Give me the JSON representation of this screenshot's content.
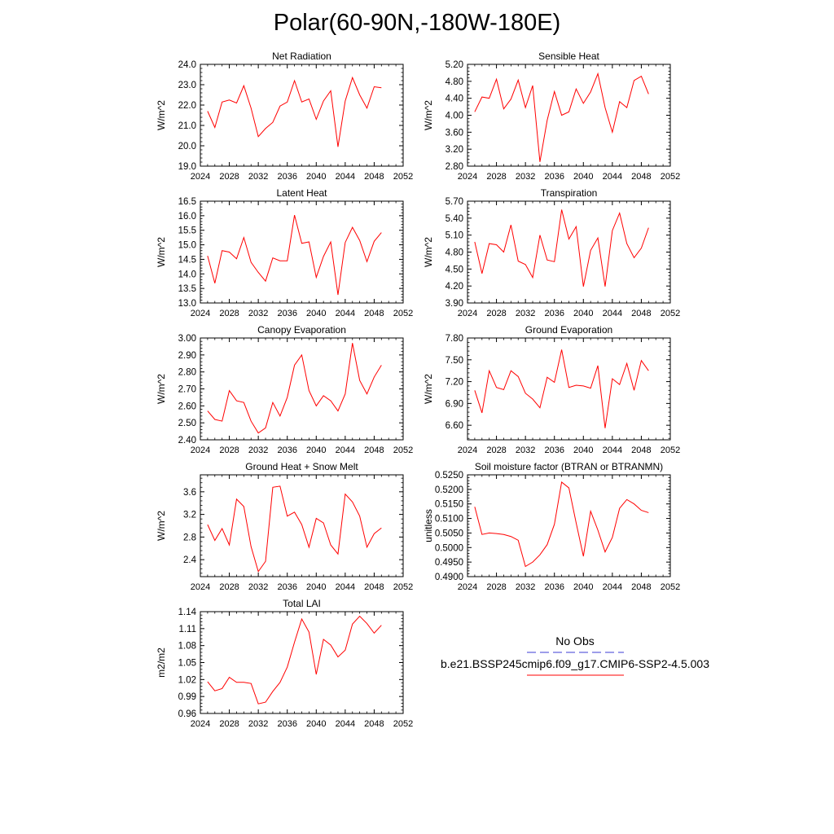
{
  "page": {
    "title": "Polar(60-90N,-180W-180E)"
  },
  "legend": {
    "obs_label": "No Obs",
    "obs_color": "#3b3bd6",
    "case_label": "b.e21.BSSP245cmip6.f09_g17.CMIP6-SSP2-4.5.003",
    "case_color": "#ff0000"
  },
  "chart_data": [
    {
      "type": "line",
      "title": "Net Radiation",
      "ylabel": "W/m^2",
      "xlim": [
        2024,
        2052
      ],
      "xticks": [
        2024,
        2028,
        2032,
        2036,
        2040,
        2044,
        2048,
        2052
      ],
      "ylim": [
        19.0,
        24.0
      ],
      "yticks": [
        "19.0",
        "20.0",
        "21.0",
        "22.0",
        "23.0",
        "24.0"
      ],
      "series": [
        {
          "name": "b.e21.BSSP245cmip6.f09_g17.CMIP6-SSP2-4.5.003",
          "color": "#ff0000",
          "x": [
            2025,
            2026,
            2027,
            2028,
            2029,
            2030,
            2031,
            2032,
            2033,
            2034,
            2035,
            2036,
            2037,
            2038,
            2039,
            2040,
            2041,
            2042,
            2043,
            2044,
            2045,
            2046,
            2047,
            2048,
            2049
          ],
          "values": [
            21.7,
            20.9,
            22.15,
            22.25,
            22.1,
            22.95,
            21.85,
            20.45,
            20.85,
            21.15,
            21.95,
            22.15,
            23.2,
            22.15,
            22.3,
            21.3,
            22.2,
            22.7,
            19.95,
            22.2,
            23.35,
            22.5,
            21.85,
            22.9,
            22.85
          ]
        }
      ]
    },
    {
      "type": "line",
      "title": "Sensible Heat",
      "ylabel": "W/m^2",
      "xlim": [
        2024,
        2052
      ],
      "xticks": [
        2024,
        2028,
        2032,
        2036,
        2040,
        2044,
        2048,
        2052
      ],
      "ylim": [
        2.8,
        5.2
      ],
      "yticks": [
        "2.80",
        "3.20",
        "3.60",
        "4.00",
        "4.40",
        "4.80",
        "5.20"
      ],
      "series": [
        {
          "name": "b.e21.BSSP245cmip6.f09_g17.CMIP6-SSP2-4.5.003",
          "color": "#ff0000",
          "x": [
            2025,
            2026,
            2027,
            2028,
            2029,
            2030,
            2031,
            2032,
            2033,
            2034,
            2035,
            2036,
            2037,
            2038,
            2039,
            2040,
            2041,
            2042,
            2043,
            2044,
            2045,
            2046,
            2047,
            2048,
            2049
          ],
          "values": [
            4.08,
            4.43,
            4.4,
            4.85,
            4.15,
            4.38,
            4.83,
            4.18,
            4.7,
            2.9,
            3.88,
            4.56,
            4.0,
            4.08,
            4.62,
            4.28,
            4.55,
            4.98,
            4.18,
            3.6,
            4.32,
            4.18,
            4.82,
            4.92,
            4.5
          ]
        }
      ]
    },
    {
      "type": "line",
      "title": "Latent Heat",
      "ylabel": "W/m^2",
      "xlim": [
        2024,
        2052
      ],
      "xticks": [
        2024,
        2028,
        2032,
        2036,
        2040,
        2044,
        2048,
        2052
      ],
      "ylim": [
        13.0,
        16.5
      ],
      "yticks": [
        "13.0",
        "13.5",
        "14.0",
        "14.5",
        "15.0",
        "15.5",
        "16.0",
        "16.5"
      ],
      "series": [
        {
          "name": "b.e21.BSSP245cmip6.f09_g17.CMIP6-SSP2-4.5.003",
          "color": "#ff0000",
          "x": [
            2025,
            2026,
            2027,
            2028,
            2029,
            2030,
            2031,
            2032,
            2033,
            2034,
            2035,
            2036,
            2037,
            2038,
            2039,
            2040,
            2041,
            2042,
            2043,
            2044,
            2045,
            2046,
            2047,
            2048,
            2049
          ],
          "values": [
            14.62,
            13.68,
            14.8,
            14.75,
            14.52,
            15.25,
            14.4,
            14.05,
            13.75,
            14.55,
            14.45,
            14.45,
            16.02,
            15.05,
            15.1,
            13.88,
            14.6,
            15.1,
            13.28,
            15.08,
            15.6,
            15.15,
            14.42,
            15.12,
            15.42
          ]
        }
      ]
    },
    {
      "type": "line",
      "title": "Transpiration",
      "ylabel": "W/m^2",
      "xlim": [
        2024,
        2052
      ],
      "xticks": [
        2024,
        2028,
        2032,
        2036,
        2040,
        2044,
        2048,
        2052
      ],
      "ylim": [
        3.9,
        5.7
      ],
      "yticks": [
        "3.90",
        "4.20",
        "4.50",
        "4.80",
        "5.10",
        "5.40",
        "5.70"
      ],
      "series": [
        {
          "name": "b.e21.BSSP245cmip6.f09_g17.CMIP6-SSP2-4.5.003",
          "color": "#ff0000",
          "x": [
            2025,
            2026,
            2027,
            2028,
            2029,
            2030,
            2031,
            2032,
            2033,
            2034,
            2035,
            2036,
            2037,
            2038,
            2039,
            2040,
            2041,
            2042,
            2043,
            2044,
            2045,
            2046,
            2047,
            2048,
            2049
          ],
          "values": [
            4.98,
            4.42,
            4.95,
            4.93,
            4.8,
            5.28,
            4.64,
            4.58,
            4.35,
            5.1,
            4.66,
            4.63,
            5.55,
            5.03,
            5.25,
            4.19,
            4.83,
            5.05,
            4.19,
            5.18,
            5.49,
            4.95,
            4.7,
            4.87,
            5.23
          ]
        }
      ]
    },
    {
      "type": "line",
      "title": "Canopy Evaporation",
      "ylabel": "W/m^2",
      "xlim": [
        2024,
        2052
      ],
      "xticks": [
        2024,
        2028,
        2032,
        2036,
        2040,
        2044,
        2048,
        2052
      ],
      "ylim": [
        2.4,
        3.0
      ],
      "yticks": [
        "2.40",
        "2.50",
        "2.60",
        "2.70",
        "2.80",
        "2.90",
        "3.00"
      ],
      "series": [
        {
          "name": "b.e21.BSSP245cmip6.f09_g17.CMIP6-SSP2-4.5.003",
          "color": "#ff0000",
          "x": [
            2025,
            2026,
            2027,
            2028,
            2029,
            2030,
            2031,
            2032,
            2033,
            2034,
            2035,
            2036,
            2037,
            2038,
            2039,
            2040,
            2041,
            2042,
            2043,
            2044,
            2045,
            2046,
            2047,
            2048,
            2049
          ],
          "values": [
            2.57,
            2.52,
            2.51,
            2.69,
            2.63,
            2.62,
            2.51,
            2.44,
            2.47,
            2.62,
            2.54,
            2.65,
            2.84,
            2.9,
            2.69,
            2.6,
            2.66,
            2.63,
            2.57,
            2.67,
            2.97,
            2.75,
            2.67,
            2.77,
            2.84
          ]
        }
      ]
    },
    {
      "type": "line",
      "title": "Ground Evaporation",
      "ylabel": "W/m^2",
      "xlim": [
        2024,
        2052
      ],
      "xticks": [
        2024,
        2028,
        2032,
        2036,
        2040,
        2044,
        2048,
        2052
      ],
      "ylim": [
        6.4,
        7.8
      ],
      "yticks": [
        "6.60",
        "6.90",
        "7.20",
        "7.50",
        "7.80"
      ],
      "series": [
        {
          "name": "b.e21.BSSP245cmip6.f09_g17.CMIP6-SSP2-4.5.003",
          "color": "#ff0000",
          "x": [
            2025,
            2026,
            2027,
            2028,
            2029,
            2030,
            2031,
            2032,
            2033,
            2034,
            2035,
            2036,
            2037,
            2038,
            2039,
            2040,
            2041,
            2042,
            2043,
            2044,
            2045,
            2046,
            2047,
            2048,
            2049
          ],
          "values": [
            7.08,
            6.77,
            7.35,
            7.12,
            7.09,
            7.35,
            7.27,
            7.04,
            6.96,
            6.84,
            7.26,
            7.19,
            7.64,
            7.12,
            7.15,
            7.14,
            7.11,
            7.42,
            6.56,
            7.24,
            7.16,
            7.45,
            7.08,
            7.49,
            7.35
          ]
        }
      ]
    },
    {
      "type": "line",
      "title": "Ground Heat + Snow Melt",
      "ylabel": "W/m^2",
      "xlim": [
        2024,
        2052
      ],
      "xticks": [
        2024,
        2028,
        2032,
        2036,
        2040,
        2044,
        2048,
        2052
      ],
      "ylim": [
        2.1,
        3.9
      ],
      "yticks": [
        "2.4",
        "2.8",
        "3.2",
        "3.6"
      ],
      "series": [
        {
          "name": "b.e21.BSSP245cmip6.f09_g17.CMIP6-SSP2-4.5.003",
          "color": "#ff0000",
          "x": [
            2025,
            2026,
            2027,
            2028,
            2029,
            2030,
            2031,
            2032,
            2033,
            2034,
            2035,
            2036,
            2037,
            2038,
            2039,
            2040,
            2041,
            2042,
            2043,
            2044,
            2045,
            2046,
            2047,
            2048,
            2049
          ],
          "values": [
            3.02,
            2.74,
            2.95,
            2.66,
            3.47,
            3.34,
            2.63,
            2.19,
            2.37,
            3.68,
            3.7,
            3.17,
            3.24,
            3.02,
            2.62,
            3.13,
            3.05,
            2.66,
            2.5,
            3.56,
            3.42,
            3.17,
            2.62,
            2.86,
            2.96
          ]
        }
      ]
    },
    {
      "type": "line",
      "title": "Soil moisture factor (BTRAN or BTRANMN)",
      "ylabel": "unitless",
      "xlim": [
        2024,
        2052
      ],
      "xticks": [
        2024,
        2028,
        2032,
        2036,
        2040,
        2044,
        2048,
        2052
      ],
      "ylim": [
        0.49,
        0.525
      ],
      "yticks": [
        "0.4900",
        "0.4950",
        "0.5000",
        "0.5050",
        "0.5100",
        "0.5150",
        "0.5200",
        "0.5250"
      ],
      "series": [
        {
          "name": "b.e21.BSSP245cmip6.f09_g17.CMIP6-SSP2-4.5.003",
          "color": "#ff0000",
          "x": [
            2025,
            2026,
            2027,
            2028,
            2029,
            2030,
            2031,
            2032,
            2033,
            2034,
            2035,
            2036,
            2037,
            2038,
            2039,
            2040,
            2041,
            2042,
            2043,
            2044,
            2045,
            2046,
            2047,
            2048,
            2049
          ],
          "values": [
            0.514,
            0.5045,
            0.505,
            0.5048,
            0.5045,
            0.5038,
            0.5025,
            0.4935,
            0.495,
            0.4975,
            0.501,
            0.508,
            0.5225,
            0.5205,
            0.5085,
            0.497,
            0.5125,
            0.506,
            0.4985,
            0.5035,
            0.5135,
            0.5165,
            0.515,
            0.5128,
            0.512
          ]
        }
      ]
    },
    {
      "type": "line",
      "title": "Total LAI",
      "ylabel": "m2/m2",
      "xlim": [
        2024,
        2052
      ],
      "xticks": [
        2024,
        2028,
        2032,
        2036,
        2040,
        2044,
        2048,
        2052
      ],
      "ylim": [
        0.96,
        1.14
      ],
      "yticks": [
        "0.96",
        "0.99",
        "1.02",
        "1.05",
        "1.08",
        "1.11",
        "1.14"
      ],
      "series": [
        {
          "name": "b.e21.BSSP245cmip6.f09_g17.CMIP6-SSP2-4.5.003",
          "color": "#ff0000",
          "x": [
            2025,
            2026,
            2027,
            2028,
            2029,
            2030,
            2031,
            2032,
            2033,
            2034,
            2035,
            2036,
            2037,
            2038,
            2039,
            2040,
            2041,
            2042,
            2043,
            2044,
            2045,
            2046,
            2047,
            2048,
            2049
          ],
          "values": [
            1.016,
            1.0,
            1.004,
            1.024,
            1.015,
            1.015,
            1.013,
            0.977,
            0.98,
            0.999,
            1.015,
            1.042,
            1.086,
            1.127,
            1.104,
            1.029,
            1.091,
            1.081,
            1.06,
            1.072,
            1.118,
            1.132,
            1.119,
            1.102,
            1.116
          ]
        }
      ]
    }
  ]
}
